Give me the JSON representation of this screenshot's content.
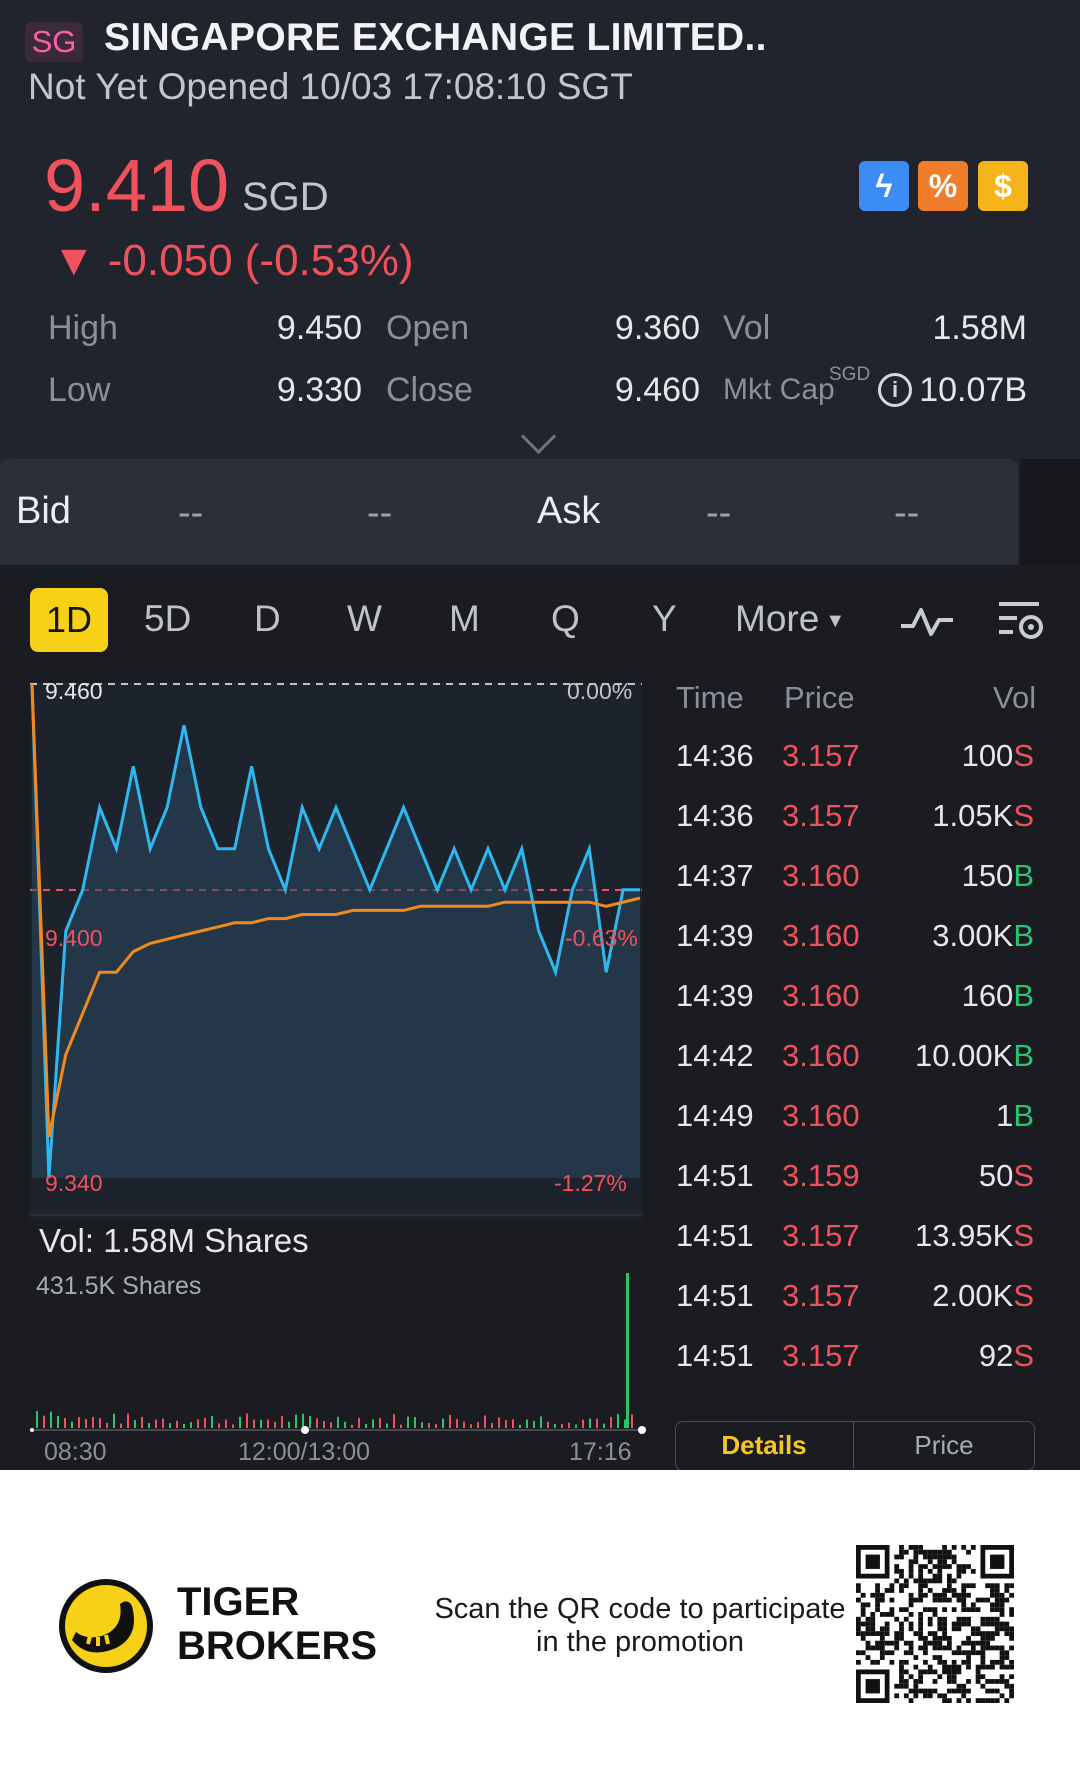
{
  "header": {
    "exchange_badge": "SG",
    "title": "SINGAPORE EXCHANGE LIMITED..",
    "status_line": "Not Yet Opened 10/03 17:08:10 SGT",
    "last_price": "9.410",
    "currency": "SGD",
    "change": "▼ -0.050 (-0.53%)",
    "icons": [
      "lightning-icon",
      "percent-icon",
      "dollar-icon"
    ],
    "accent_down_color": "#f0525d"
  },
  "stats": {
    "high_label": "High",
    "high_value": "9.450",
    "low_label": "Low",
    "low_value": "9.330",
    "open_label": "Open",
    "open_value": "9.360",
    "close_label": "Close",
    "close_value": "9.460",
    "vol_label": "Vol",
    "vol_value": "1.58M",
    "mktcap_label": "Mkt Cap",
    "mktcap_sup": "SGD",
    "mktcap_value": "10.07B"
  },
  "bidask": {
    "bid_label": "Bid",
    "bid_price": "--",
    "bid_size": "--",
    "ask_label": "Ask",
    "ask_price": "--",
    "ask_size": "--"
  },
  "tabs": {
    "items": [
      "1D",
      "5D",
      "D",
      "W",
      "M",
      "Q",
      "Y"
    ],
    "active": "1D",
    "more_label": "More"
  },
  "chart": {
    "y_top_label": "9.460",
    "y_top_pct": "0.00%",
    "y_mid_label": "9.400",
    "y_mid_pct": "-0.63%",
    "y_bottom_label": "9.340",
    "y_bottom_pct": "-1.27%",
    "x_labels": [
      "08:30",
      "12:00/13:00",
      "17:16"
    ],
    "vol_title": "Vol:  1.58M Shares",
    "vol_sub": "431.5K Shares",
    "line_color": "#2fb8f0",
    "avg_color": "#f08a1c"
  },
  "chart_data": {
    "type": "line",
    "series": [
      {
        "values": [
          9.46,
          9.34,
          9.4,
          9.41,
          9.43,
          9.42,
          9.44,
          9.42,
          9.43,
          9.45,
          9.43,
          9.42,
          9.42,
          9.44,
          9.42,
          9.41,
          9.43,
          9.42,
          9.43,
          9.42,
          9.41,
          9.42,
          9.43,
          9.42,
          9.41,
          9.42,
          9.41,
          9.42,
          9.41,
          9.42,
          9.4,
          9.39,
          9.41,
          9.42,
          9.39,
          9.41,
          9.41
        ]
      },
      {
        "values": [
          9.46,
          9.35,
          9.37,
          9.38,
          9.39,
          9.39,
          9.395,
          9.397,
          9.398,
          9.399,
          9.4,
          9.401,
          9.402,
          9.402,
          9.403,
          9.403,
          9.404,
          9.404,
          9.404,
          9.405,
          9.405,
          9.405,
          9.405,
          9.406,
          9.406,
          9.406,
          9.406,
          9.406,
          9.407,
          9.407,
          9.407,
          9.407,
          9.407,
          9.407,
          9.406,
          9.407,
          9.408
        ]
      }
    ],
    "reference_line": 9.41,
    "ylim": [
      9.34,
      9.46
    ]
  },
  "trades": {
    "headers": {
      "time": "Time",
      "price": "Price",
      "vol": "Vol"
    },
    "rows": [
      {
        "time": "14:36",
        "price": "3.157",
        "vol": "100",
        "side": "S"
      },
      {
        "time": "14:36",
        "price": "3.157",
        "vol": "1.05K",
        "side": "S"
      },
      {
        "time": "14:37",
        "price": "3.160",
        "vol": "150",
        "side": "B"
      },
      {
        "time": "14:39",
        "price": "3.160",
        "vol": "3.00K",
        "side": "B"
      },
      {
        "time": "14:39",
        "price": "3.160",
        "vol": "160",
        "side": "B"
      },
      {
        "time": "14:42",
        "price": "3.160",
        "vol": "10.00K",
        "side": "B"
      },
      {
        "time": "14:49",
        "price": "3.160",
        "vol": "1",
        "side": "B"
      },
      {
        "time": "14:51",
        "price": "3.159",
        "vol": "50",
        "side": "S"
      },
      {
        "time": "14:51",
        "price": "3.157",
        "vol": "13.95K",
        "side": "S"
      },
      {
        "time": "14:51",
        "price": "3.157",
        "vol": "2.00K",
        "side": "S"
      },
      {
        "time": "14:51",
        "price": "3.157",
        "vol": "92",
        "side": "S"
      }
    ],
    "seg_details": "Details",
    "seg_price": "Price"
  },
  "footer": {
    "brand_line1": "TIGER",
    "brand_line2": "BROKERS",
    "promo_text": "Scan the QR code to participate in the promotion"
  }
}
